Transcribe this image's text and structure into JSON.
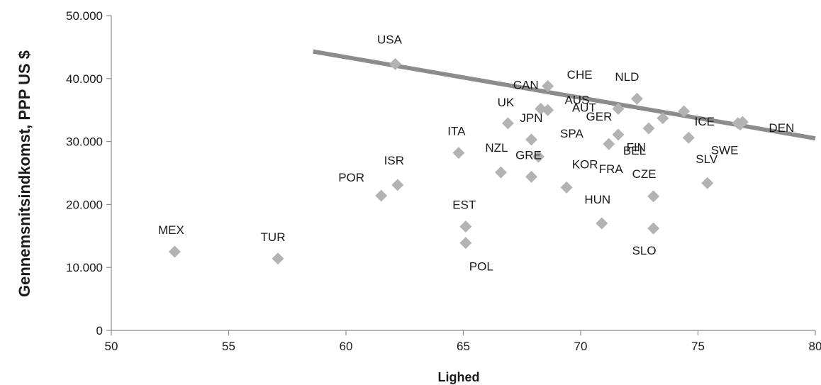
{
  "chart_data": {
    "type": "scatter",
    "title": "",
    "xlabel": "Lighed",
    "ylabel": "Gennemsnitsindkomst, PPP US $",
    "xlim": [
      50,
      80
    ],
    "ylim": [
      0,
      50000
    ],
    "x_ticks": [
      50,
      55,
      60,
      65,
      70,
      75,
      80
    ],
    "y_ticks": [
      0,
      10000,
      20000,
      30000,
      40000,
      50000
    ],
    "x_tick_labels": [
      "50",
      "55",
      "60",
      "65",
      "70",
      "75",
      "80"
    ],
    "y_tick_labels": [
      "0",
      "10.000",
      "20.000",
      "30.000",
      "40.000",
      "50.000"
    ],
    "grid": false,
    "legend": "none",
    "marker": "diamond",
    "marker_color": "#b3b3b3",
    "trendline_color": "#8c8c8c",
    "trendline": {
      "x": [
        58.6,
        80
      ],
      "y": [
        44300,
        30500
      ]
    },
    "points": [
      {
        "label": "MEX",
        "x": 52.7,
        "y": 12500
      },
      {
        "label": "TUR",
        "x": 57.1,
        "y": 11400
      },
      {
        "label": "POR",
        "x": 61.5,
        "y": 21400
      },
      {
        "label": "ISR",
        "x": 62.2,
        "y": 23100
      },
      {
        "label": "USA",
        "x": 62.1,
        "y": 42300
      },
      {
        "label": "ITA",
        "x": 64.8,
        "y": 28200
      },
      {
        "label": "EST",
        "x": 65.1,
        "y": 16500
      },
      {
        "label": "POL",
        "x": 65.1,
        "y": 13900
      },
      {
        "label": "NZL",
        "x": 66.6,
        "y": 25100
      },
      {
        "label": "UK",
        "x": 66.9,
        "y": 32900
      },
      {
        "label": "GRE",
        "x": 67.9,
        "y": 24400
      },
      {
        "label": "JPN",
        "x": 67.9,
        "y": 30300
      },
      {
        "label": "SPA",
        "x": 68.2,
        "y": 27600
      },
      {
        "label": "CAN",
        "x": 68.3,
        "y": 35200
      },
      {
        "label": "",
        "x": 68.6,
        "y": 35000
      },
      {
        "label": "",
        "x": 68.6,
        "y": 38800
      },
      {
        "label": "KOR",
        "x": 69.4,
        "y": 22700
      },
      {
        "label": "HUN",
        "x": 70.9,
        "y": 17000
      },
      {
        "label": "FRA",
        "x": 71.2,
        "y": 29600
      },
      {
        "label": "GER",
        "x": 71.6,
        "y": 31100
      },
      {
        "label": "AUS",
        "x": 71.6,
        "y": 35200
      },
      {
        "label": "NLD",
        "x": 72.4,
        "y": 36800
      },
      {
        "label": "BEL",
        "x": 72.9,
        "y": 32100
      },
      {
        "label": "CZE",
        "x": 73.1,
        "y": 21300
      },
      {
        "label": "SLO",
        "x": 73.1,
        "y": 16200
      },
      {
        "label": "AUT",
        "x": 73.5,
        "y": 33700
      },
      {
        "label": "CHE",
        "x": 74.4,
        "y": 34800
      },
      {
        "label": "FIN",
        "x": 74.6,
        "y": 30600
      },
      {
        "label": "SLV",
        "x": 75.4,
        "y": 23400
      },
      {
        "label": "ICE",
        "x": 76.7,
        "y": 32900
      },
      {
        "label": "SWE",
        "x": 76.8,
        "y": 32700
      },
      {
        "label": "DEN",
        "x": 76.9,
        "y": 33100
      }
    ]
  }
}
